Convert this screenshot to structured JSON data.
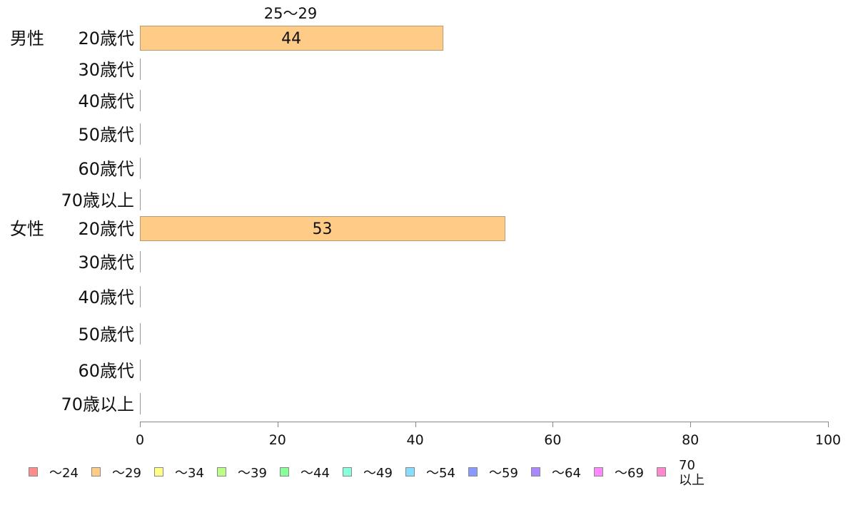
{
  "chart_data": {
    "type": "bar",
    "orientation": "horizontal",
    "stacked": true,
    "top_label": "25〜29",
    "groups": [
      {
        "name": "男性",
        "start": 0
      },
      {
        "name": "女性",
        "start": 6
      }
    ],
    "categories": [
      "20歳代",
      "30歳代",
      "40歳代",
      "50歳代",
      "60歳代",
      "70歳以上",
      "20歳代",
      "30歳代",
      "40歳代",
      "50歳代",
      "60歳代",
      "70歳以上"
    ],
    "series": [
      {
        "name": "〜24",
        "color": "#ff8c8c",
        "values": [
          0,
          0,
          0,
          0,
          0,
          0,
          0,
          0,
          0,
          0,
          0,
          0
        ]
      },
      {
        "name": "〜29",
        "color": "#ffcc88",
        "values": [
          44,
          0,
          0,
          0,
          0,
          0,
          53,
          0,
          0,
          0,
          0,
          0
        ]
      },
      {
        "name": "〜34",
        "color": "#ffff88",
        "values": [
          0,
          0,
          0,
          0,
          0,
          0,
          0,
          0,
          0,
          0,
          0,
          0
        ]
      },
      {
        "name": "〜39",
        "color": "#bbff88",
        "values": [
          0,
          0,
          0,
          0,
          0,
          0,
          0,
          0,
          0,
          0,
          0,
          0
        ]
      },
      {
        "name": "〜44",
        "color": "#88ff99",
        "values": [
          0,
          0,
          0,
          0,
          0,
          0,
          0,
          0,
          0,
          0,
          0,
          0
        ]
      },
      {
        "name": "〜49",
        "color": "#88ffdd",
        "values": [
          0,
          0,
          0,
          0,
          0,
          0,
          0,
          0,
          0,
          0,
          0,
          0
        ]
      },
      {
        "name": "〜54",
        "color": "#88ddff",
        "values": [
          0,
          0,
          0,
          0,
          0,
          0,
          0,
          0,
          0,
          0,
          0,
          0
        ]
      },
      {
        "name": "〜59",
        "color": "#8899ff",
        "values": [
          0,
          0,
          0,
          0,
          0,
          0,
          0,
          0,
          0,
          0,
          0,
          0
        ]
      },
      {
        "name": "〜64",
        "color": "#aa88ff",
        "values": [
          0,
          0,
          0,
          0,
          0,
          0,
          0,
          0,
          0,
          0,
          0,
          0
        ]
      },
      {
        "name": "〜69",
        "color": "#ff88ff",
        "values": [
          0,
          0,
          0,
          0,
          0,
          0,
          0,
          0,
          0,
          0,
          0,
          0
        ]
      },
      {
        "name": "70\n以上",
        "color": "#ff88cc",
        "values": [
          0,
          0,
          0,
          0,
          0,
          0,
          0,
          0,
          0,
          0,
          0,
          0
        ]
      }
    ],
    "xlim": [
      0,
      100
    ],
    "xticks": [
      0,
      20,
      40,
      60,
      80,
      100
    ],
    "grid": false,
    "legend_position": "bottom"
  }
}
